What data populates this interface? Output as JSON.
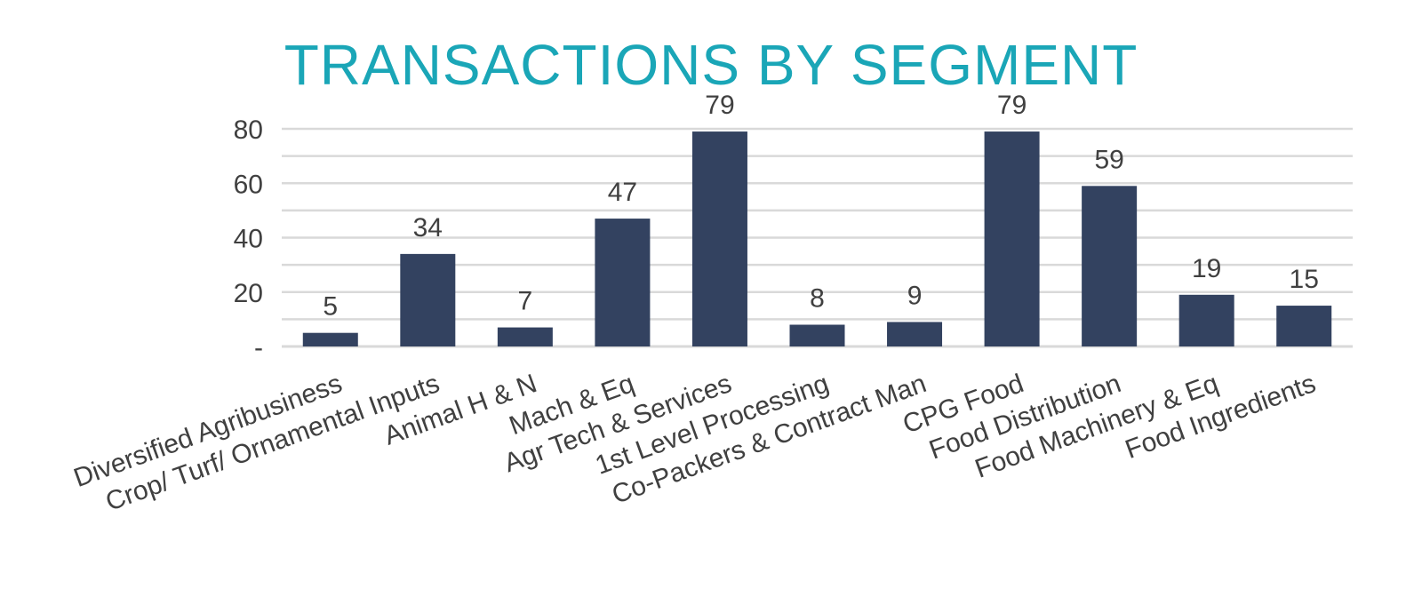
{
  "colors": {
    "title": "#1aa6b7",
    "bar": "#334260",
    "grid": "#d9d9d9",
    "text": "#404040"
  },
  "chart_data": {
    "type": "bar",
    "title": "TRANSACTIONS BY SEGMENT",
    "xlabel": "",
    "ylabel": "",
    "ylim": [
      0,
      80
    ],
    "grid": true,
    "yticks": [
      {
        "value": 0,
        "label": "-"
      },
      {
        "value": 20,
        "label": "20"
      },
      {
        "value": 40,
        "label": "40"
      },
      {
        "value": 60,
        "label": "60"
      },
      {
        "value": 80,
        "label": "80"
      }
    ],
    "categories": [
      "Diversified Agribusiness",
      "Crop/ Turf/ Ornamental Inputs",
      "Animal H & N",
      "Mach & Eq",
      "Agr Tech & Services",
      "1st Level Processing",
      "Co-Packers & Contract Man",
      "CPG Food",
      "Food Distribution",
      "Food Machinery & Eq",
      "Food Ingredients"
    ],
    "values": [
      5,
      34,
      7,
      47,
      79,
      8,
      9,
      79,
      59,
      19,
      15
    ],
    "data_labels": [
      "5",
      "34",
      "7",
      "47",
      "79",
      "8",
      "9",
      "79",
      "59",
      "19",
      "15"
    ]
  }
}
